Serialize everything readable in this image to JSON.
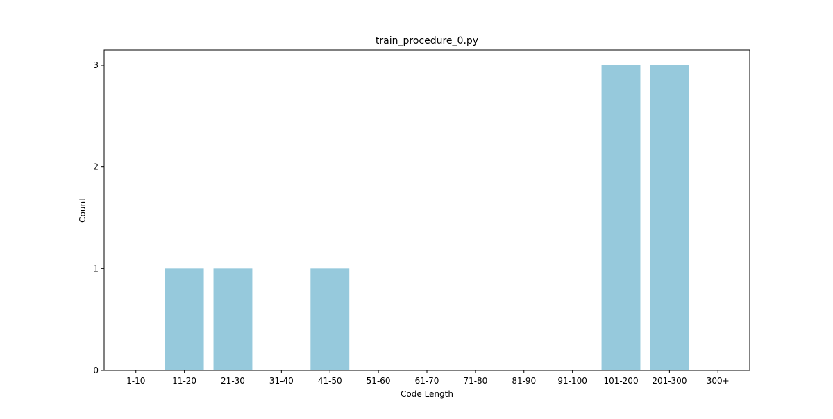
{
  "chart_data": {
    "type": "bar",
    "title": "train_procedure_0.py",
    "xlabel": "Code Length",
    "ylabel": "Count",
    "categories": [
      "1-10",
      "11-20",
      "21-30",
      "31-40",
      "41-50",
      "51-60",
      "61-70",
      "71-80",
      "81-90",
      "91-100",
      "101-200",
      "201-300",
      "300+"
    ],
    "values": [
      0,
      1,
      1,
      0,
      1,
      0,
      0,
      0,
      0,
      0,
      3,
      3,
      0
    ],
    "yticks": [
      0,
      1,
      2,
      3
    ],
    "ylim": [
      0,
      3.15
    ],
    "grid": false,
    "legend": "none",
    "bar_color": "#96c9dc"
  }
}
